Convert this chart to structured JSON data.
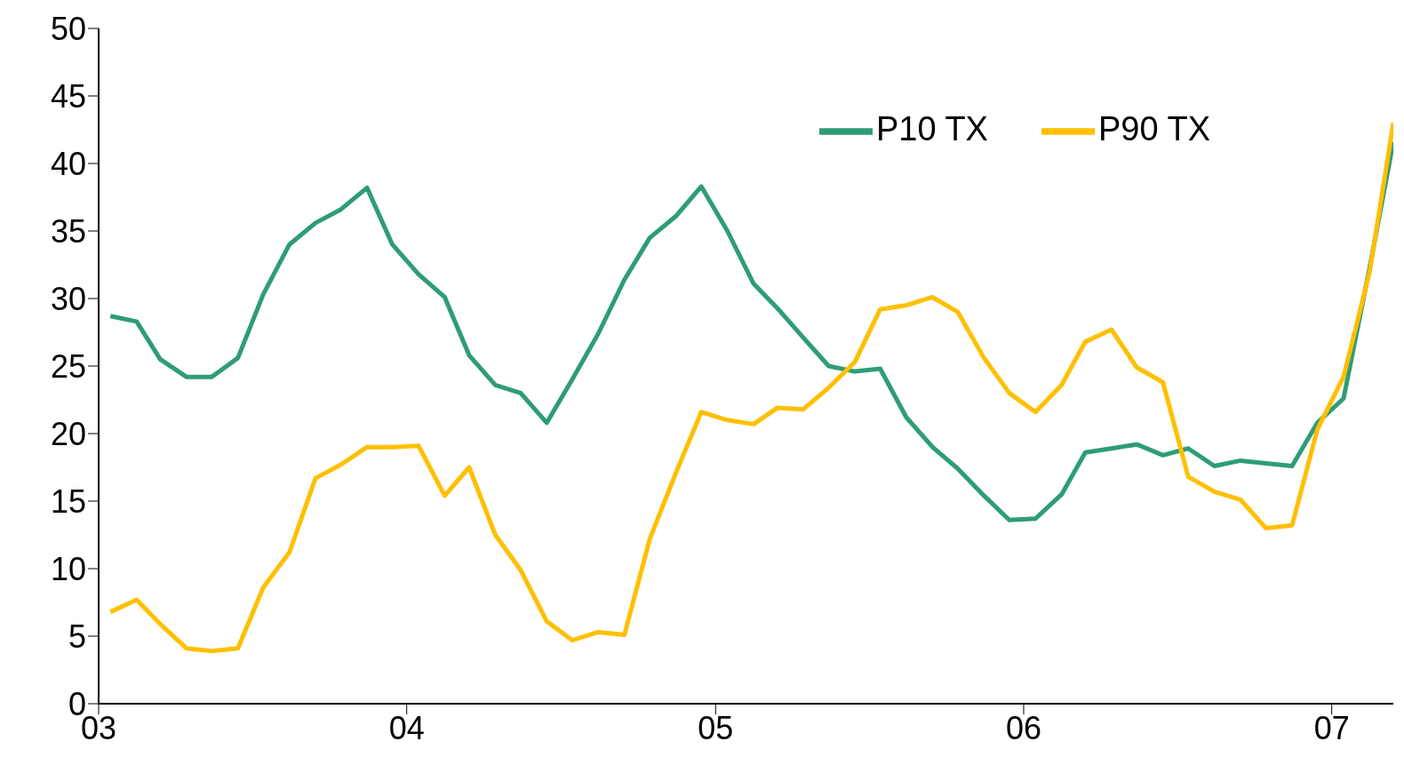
{
  "chart_data": {
    "type": "line",
    "x": [
      "2003-01-15",
      "2003-02-15",
      "2003-03-15",
      "2003-04-15",
      "2003-05-15",
      "2003-06-15",
      "2003-07-15",
      "2003-08-15",
      "2003-09-15",
      "2003-10-15",
      "2003-11-15",
      "2003-12-15",
      "2004-01-15",
      "2004-02-15",
      "2004-03-15",
      "2004-04-15",
      "2004-05-15",
      "2004-06-15",
      "2004-07-15",
      "2004-08-15",
      "2004-09-15",
      "2004-10-15",
      "2004-11-15",
      "2004-12-15",
      "2005-01-15",
      "2005-02-15",
      "2005-03-15",
      "2005-04-15",
      "2005-05-15",
      "2005-06-15",
      "2005-07-15",
      "2005-08-15",
      "2005-09-15",
      "2005-10-15",
      "2005-11-15",
      "2005-12-15",
      "2006-01-15",
      "2006-02-15",
      "2006-03-15",
      "2006-04-15",
      "2006-05-15",
      "2006-06-15",
      "2006-07-15",
      "2006-08-15",
      "2006-09-15",
      "2006-10-15",
      "2006-11-15",
      "2006-12-15",
      "2007-01-15",
      "2007-02-15",
      "2007-03-15"
    ],
    "series": [
      {
        "name": "P10 TX",
        "color": "#2e9c78",
        "values": [
          28.7,
          28.3,
          25.5,
          24.2,
          24.2,
          25.6,
          30.3,
          34.0,
          35.6,
          36.6,
          38.2,
          34.0,
          31.8,
          30.1,
          25.8,
          23.6,
          23.0,
          20.8,
          24.0,
          27.4,
          31.4,
          34.5,
          36.1,
          38.3,
          35.0,
          31.1,
          29.3,
          27.1,
          25.0,
          24.6,
          24.8,
          21.2,
          19.0,
          17.4,
          15.4,
          13.6,
          13.7,
          15.5,
          18.6,
          18.9,
          19.2,
          18.4,
          18.9,
          17.6,
          18.0,
          17.8,
          17.6,
          20.8,
          22.6,
          32.3,
          41.6
        ]
      },
      {
        "name": "P90 TX",
        "color": "#ffbf00",
        "values": [
          6.8,
          7.7,
          5.9,
          4.1,
          3.9,
          4.1,
          8.6,
          11.2,
          16.7,
          17.7,
          19.0,
          19.0,
          19.1,
          15.4,
          17.5,
          12.5,
          9.9,
          6.1,
          4.7,
          5.3,
          5.1,
          12.2,
          17.1,
          21.6,
          21.0,
          20.7,
          21.9,
          21.8,
          23.4,
          25.3,
          29.2,
          29.5,
          30.1,
          29.0,
          25.6,
          23.0,
          21.6,
          23.6,
          26.8,
          27.7,
          24.9,
          23.8,
          16.8,
          15.7,
          15.1,
          13.0,
          13.2,
          20.3,
          24.2,
          32.0,
          43.0
        ]
      }
    ],
    "xlim": [
      "2003-01-01",
      "2007-03-15"
    ],
    "xticks": [
      {
        "value": "2003-01-01",
        "label": "03"
      },
      {
        "value": "2004-01-01",
        "label": "04"
      },
      {
        "value": "2005-01-01",
        "label": "05"
      },
      {
        "value": "2006-01-01",
        "label": "06"
      },
      {
        "value": "2007-01-01",
        "label": "07"
      }
    ],
    "ylim": [
      0,
      50
    ],
    "yticks": [
      0,
      5,
      10,
      15,
      20,
      25,
      30,
      35,
      40,
      45,
      50
    ],
    "grid": false,
    "legend": "top right"
  }
}
